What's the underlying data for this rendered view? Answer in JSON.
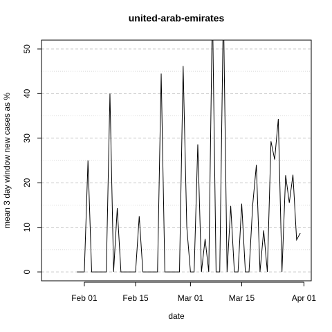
{
  "chart_data": {
    "type": "line",
    "title": "united-arab-emirates",
    "xlabel": "date",
    "ylabel": "mean  3  day window new cases as %",
    "x": [
      30,
      31,
      32,
      33,
      34,
      35,
      36,
      37,
      38,
      39,
      40,
      41,
      42,
      43,
      44,
      45,
      46,
      47,
      48,
      49,
      50,
      51,
      52,
      53,
      54,
      55,
      56,
      57,
      58,
      59,
      60,
      61,
      62,
      63,
      64,
      65,
      66,
      67,
      68,
      69,
      70,
      71,
      72,
      73,
      74,
      75,
      76,
      77,
      78,
      79,
      80,
      81,
      82,
      83,
      84,
      85,
      86,
      87,
      88,
      89,
      90,
      91
    ],
    "series": [
      {
        "name": "united-arab-emirates",
        "color": "#000000",
        "values": [
          0,
          0,
          0,
          25,
          0,
          0,
          0,
          0,
          0,
          40,
          0,
          14.3,
          0,
          0,
          0,
          0,
          0,
          12.5,
          0,
          0,
          0,
          0,
          0,
          44.5,
          0,
          0,
          0,
          0,
          0,
          46.2,
          10,
          0,
          0,
          28.6,
          0,
          7.4,
          0,
          60,
          0,
          0,
          60,
          0,
          14.8,
          0,
          0,
          15.3,
          0,
          0,
          15,
          24,
          0,
          9.3,
          0,
          29.3,
          25.2,
          34.3,
          0,
          21.7,
          15.5,
          21.8,
          7.2,
          8.7
        ]
      }
    ],
    "xlim": [
      20.3,
      94.0
    ],
    "xticks": [
      {
        "value": 32,
        "label": "Feb 01"
      },
      {
        "value": 46,
        "label": "Feb 15"
      },
      {
        "value": 61,
        "label": "Mar 01"
      },
      {
        "value": 75,
        "label": "Mar 15"
      },
      {
        "value": 92,
        "label": "Apr 01"
      }
    ],
    "ylim": [
      -2,
      52
    ],
    "yticks": [
      0,
      10,
      20,
      30,
      40,
      50
    ],
    "minor_yticks": [
      5,
      15,
      25,
      35,
      45
    ],
    "grid": true
  }
}
